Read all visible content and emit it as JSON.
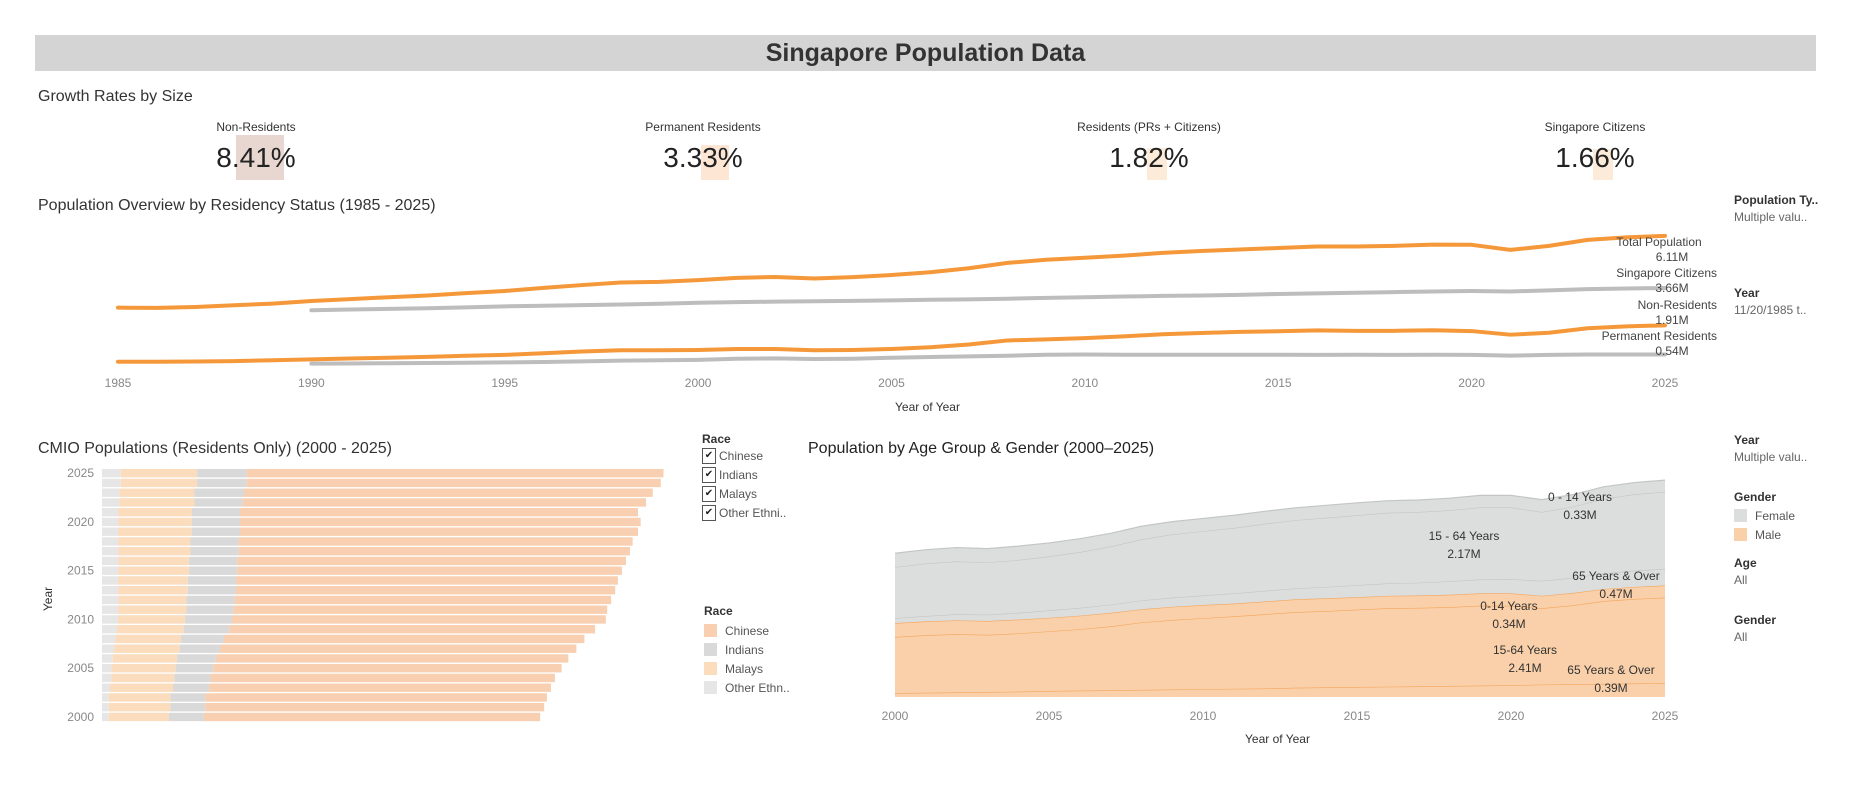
{
  "title": "Singapore Population Data",
  "growth": {
    "title": "Growth Rates by Size",
    "kpis": [
      {
        "label": "Non-Residents",
        "value": "8.41%",
        "rate": 8.41,
        "highlight": "#e8d6d0"
      },
      {
        "label": "Permanent Residents",
        "value": "3.33%",
        "rate": 3.33,
        "highlight": "#fde6d4"
      },
      {
        "label": "Residents (PRs + Citizens)",
        "value": "1.82%",
        "rate": 1.82,
        "highlight": "#fdebd9"
      },
      {
        "label": "Singapore Citizens",
        "value": "1.66%",
        "rate": 1.66,
        "highlight": "#fdebd9"
      }
    ]
  },
  "filters_top": [
    {
      "title": "Population Ty..",
      "value": "Multiple valu.."
    },
    {
      "title": "Year",
      "value": "11/20/1985 t.."
    }
  ],
  "filters_bottom": {
    "year": {
      "title": "Year",
      "value": "Multiple valu.."
    },
    "gender_legend": {
      "title": "Gender",
      "items": [
        {
          "label": "Female",
          "color": "#dcdddd"
        },
        {
          "label": "Male",
          "color": "#f9d0a9"
        }
      ]
    },
    "age": {
      "title": "Age",
      "value": "All"
    },
    "gender": {
      "title": "Gender",
      "value": "All"
    }
  },
  "race_filter": {
    "title": "Race",
    "items": [
      "Chinese",
      "Indians",
      "Malays",
      "Other Ethni.."
    ]
  },
  "race_legend": {
    "title": "Race",
    "items": [
      {
        "label": "Chinese",
        "color": "#f8cfb0"
      },
      {
        "label": "Indians",
        "color": "#d9d9d9"
      },
      {
        "label": "Malays",
        "color": "#fbdcbc"
      },
      {
        "label": "Other Ethn..",
        "color": "#e6e6e6"
      }
    ]
  },
  "chart_data": [
    {
      "type": "line",
      "title": "Population Overview by Residency Status (1985 - 2025)",
      "xlabel": "Year of Year",
      "ylabel": "",
      "xlim": [
        1985,
        2025
      ],
      "xticks": [
        "1985",
        "1990",
        "1995",
        "2000",
        "2005",
        "2010",
        "2015",
        "2020",
        "2025"
      ],
      "units": "M",
      "series": [
        {
          "name": "Total Population",
          "end_label": "6.11M",
          "color": "#f5983a",
          "start": 1985,
          "values": [
            2.74,
            2.73,
            2.77,
            2.85,
            2.93,
            3.05,
            3.14,
            3.23,
            3.31,
            3.42,
            3.52,
            3.67,
            3.8,
            3.92,
            3.95,
            4.03,
            4.14,
            4.18,
            4.11,
            4.17,
            4.27,
            4.4,
            4.59,
            4.84,
            4.99,
            5.08,
            5.18,
            5.31,
            5.4,
            5.47,
            5.54,
            5.61,
            5.61,
            5.64,
            5.7,
            5.69,
            5.45,
            5.64,
            5.92,
            6.04,
            6.11
          ]
        },
        {
          "name": "Singapore Citizens",
          "end_label": "3.66M",
          "color": "#bdbdbd",
          "start": 1990,
          "values": [
            2.62,
            2.65,
            2.68,
            2.71,
            2.75,
            2.8,
            2.83,
            2.86,
            2.89,
            2.92,
            2.97,
            3.0,
            3.02,
            3.04,
            3.06,
            3.08,
            3.11,
            3.13,
            3.16,
            3.2,
            3.23,
            3.26,
            3.29,
            3.31,
            3.34,
            3.38,
            3.41,
            3.44,
            3.47,
            3.5,
            3.52,
            3.5,
            3.55,
            3.61,
            3.64,
            3.66
          ]
        },
        {
          "name": "Non-Residents",
          "end_label": "1.91M",
          "color": "#f5983a",
          "start": 1985,
          "values": [
            0.2,
            0.2,
            0.21,
            0.23,
            0.27,
            0.31,
            0.35,
            0.39,
            0.43,
            0.48,
            0.52,
            0.6,
            0.68,
            0.74,
            0.74,
            0.75,
            0.8,
            0.8,
            0.74,
            0.75,
            0.8,
            0.88,
            1.01,
            1.2,
            1.25,
            1.31,
            1.39,
            1.49,
            1.55,
            1.6,
            1.63,
            1.67,
            1.65,
            1.65,
            1.68,
            1.64,
            1.47,
            1.56,
            1.77,
            1.86,
            1.91
          ]
        },
        {
          "name": "Permanent Residents",
          "end_label": "0.54M",
          "color": "#bdbdbd",
          "start": 1990,
          "values": [
            0.11,
            0.12,
            0.13,
            0.14,
            0.15,
            0.17,
            0.19,
            0.22,
            0.25,
            0.27,
            0.29,
            0.34,
            0.36,
            0.33,
            0.34,
            0.39,
            0.42,
            0.45,
            0.48,
            0.53,
            0.54,
            0.53,
            0.53,
            0.53,
            0.53,
            0.53,
            0.52,
            0.53,
            0.52,
            0.53,
            0.52,
            0.49,
            0.52,
            0.54,
            0.54,
            0.54
          ]
        }
      ]
    },
    {
      "type": "bar",
      "orientation": "horizontal-stacked",
      "title": "CMIO Populations (Residents Only) (2000 - 2025)",
      "ylabel": "Year",
      "categories": [
        2000,
        2001,
        2002,
        2003,
        2004,
        2005,
        2006,
        2007,
        2008,
        2009,
        2010,
        2011,
        2012,
        2013,
        2014,
        2015,
        2016,
        2017,
        2018,
        2019,
        2020,
        2021,
        2022,
        2023,
        2024,
        2025
      ],
      "yticks": [
        "2000",
        "2005",
        "2010",
        "2015",
        "2020",
        "2025"
      ],
      "units": "M",
      "series": [
        {
          "name": "Other Ethn..",
          "color": "#e6e6e6",
          "values": [
            0.05,
            0.05,
            0.05,
            0.06,
            0.07,
            0.07,
            0.08,
            0.09,
            0.1,
            0.11,
            0.12,
            0.12,
            0.12,
            0.12,
            0.12,
            0.12,
            0.12,
            0.12,
            0.12,
            0.12,
            0.12,
            0.12,
            0.13,
            0.13,
            0.14,
            0.14
          ]
        },
        {
          "name": "Malays",
          "color": "#fbdcbc",
          "values": [
            0.45,
            0.46,
            0.46,
            0.47,
            0.47,
            0.48,
            0.48,
            0.49,
            0.49,
            0.5,
            0.5,
            0.51,
            0.51,
            0.52,
            0.52,
            0.53,
            0.53,
            0.54,
            0.54,
            0.55,
            0.55,
            0.55,
            0.56,
            0.56,
            0.57,
            0.57
          ]
        },
        {
          "name": "Indians",
          "color": "#d9d9d9",
          "values": [
            0.26,
            0.26,
            0.26,
            0.27,
            0.27,
            0.28,
            0.29,
            0.3,
            0.32,
            0.34,
            0.35,
            0.35,
            0.36,
            0.36,
            0.36,
            0.36,
            0.36,
            0.36,
            0.36,
            0.36,
            0.36,
            0.36,
            0.36,
            0.37,
            0.37,
            0.37
          ]
        },
        {
          "name": "Chinese",
          "color": "#f8cfb0",
          "values": [
            2.51,
            2.53,
            2.55,
            2.55,
            2.57,
            2.6,
            2.63,
            2.66,
            2.69,
            2.73,
            2.79,
            2.79,
            2.81,
            2.83,
            2.85,
            2.87,
            2.9,
            2.92,
            2.94,
            2.97,
            2.99,
            2.97,
            3.01,
            3.05,
            3.09,
            3.11
          ]
        }
      ]
    },
    {
      "type": "area",
      "stacked": true,
      "title": "Population by Age Group & Gender (2000–2025)",
      "xlabel": "Year of Year",
      "xlim": [
        2000,
        2025
      ],
      "xticks": [
        "2000",
        "2005",
        "2010",
        "2015",
        "2020",
        "2025"
      ],
      "x": [
        2000,
        2001,
        2002,
        2003,
        2004,
        2005,
        2006,
        2007,
        2008,
        2009,
        2010,
        2011,
        2012,
        2013,
        2014,
        2015,
        2016,
        2017,
        2018,
        2019,
        2020,
        2021,
        2022,
        2023,
        2024,
        2025
      ],
      "units": "M",
      "series": [
        {
          "gender": "Male",
          "age": "65 Years & Over",
          "end_label": "0.39M",
          "values": [
            0.11,
            0.12,
            0.13,
            0.14,
            0.15,
            0.17,
            0.18,
            0.19,
            0.2,
            0.21,
            0.22,
            0.23,
            0.24,
            0.26,
            0.27,
            0.28,
            0.29,
            0.3,
            0.31,
            0.32,
            0.33,
            0.35,
            0.36,
            0.37,
            0.38,
            0.39
          ]
        },
        {
          "gender": "Male",
          "age": "15-64 Years",
          "end_label": "2.41M",
          "values": [
            1.58,
            1.62,
            1.64,
            1.61,
            1.64,
            1.68,
            1.73,
            1.8,
            1.9,
            1.96,
            2.0,
            2.04,
            2.09,
            2.13,
            2.15,
            2.18,
            2.21,
            2.21,
            2.22,
            2.25,
            2.24,
            2.15,
            2.22,
            2.33,
            2.38,
            2.41
          ]
        },
        {
          "gender": "Male",
          "age": "0-14 Years",
          "end_label": "0.34M",
          "values": [
            0.39,
            0.39,
            0.39,
            0.39,
            0.39,
            0.38,
            0.38,
            0.38,
            0.37,
            0.37,
            0.37,
            0.36,
            0.36,
            0.36,
            0.36,
            0.35,
            0.35,
            0.35,
            0.35,
            0.35,
            0.35,
            0.35,
            0.35,
            0.34,
            0.34,
            0.34
          ]
        },
        {
          "gender": "Female",
          "age": "65 Years & Over",
          "end_label": "0.47M",
          "values": [
            0.14,
            0.15,
            0.17,
            0.18,
            0.19,
            0.21,
            0.22,
            0.23,
            0.25,
            0.26,
            0.27,
            0.29,
            0.3,
            0.31,
            0.32,
            0.34,
            0.35,
            0.36,
            0.38,
            0.39,
            0.4,
            0.42,
            0.43,
            0.44,
            0.46,
            0.47
          ]
        },
        {
          "gender": "Female",
          "age": "15 - 64 Years",
          "end_label": "2.17M",
          "values": [
            1.44,
            1.48,
            1.49,
            1.47,
            1.49,
            1.52,
            1.57,
            1.64,
            1.72,
            1.78,
            1.81,
            1.84,
            1.89,
            1.92,
            1.95,
            1.97,
            1.99,
            1.99,
            2.0,
            2.03,
            2.02,
            1.94,
            2.0,
            2.1,
            2.15,
            2.17
          ]
        },
        {
          "gender": "Female",
          "age": "0 - 14 Years",
          "end_label": "0.33M",
          "values": [
            0.39,
            0.39,
            0.39,
            0.39,
            0.39,
            0.38,
            0.38,
            0.37,
            0.37,
            0.36,
            0.36,
            0.36,
            0.35,
            0.35,
            0.35,
            0.35,
            0.34,
            0.34,
            0.34,
            0.34,
            0.34,
            0.35,
            0.34,
            0.34,
            0.33,
            0.33
          ]
        }
      ],
      "colors": {
        "Female": "#dcdddd",
        "Female_line": "#c4c6c6",
        "Male": "#f9d0a9",
        "Male_line": "#f5a55a"
      }
    }
  ]
}
